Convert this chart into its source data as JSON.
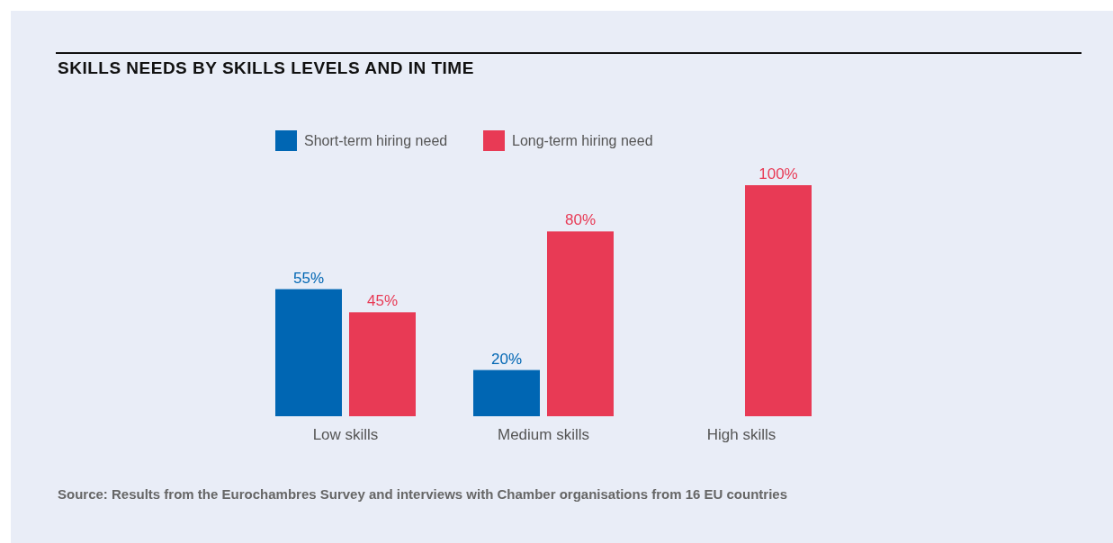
{
  "chart_data": {
    "type": "bar",
    "title": "SKILLS NEEDS BY SKILLS LEVELS AND IN TIME",
    "categories": [
      "Low skills",
      "Medium skills",
      "High skills"
    ],
    "series": [
      {
        "name": "Short-term hiring need",
        "color": "#0066b3",
        "values": [
          55,
          20,
          null
        ],
        "value_labels": [
          "55%",
          "20%",
          null
        ]
      },
      {
        "name": "Long-term hiring need",
        "color": "#e83a55",
        "values": [
          45,
          80,
          100
        ],
        "value_labels": [
          "45%",
          "80%",
          "100%"
        ]
      }
    ],
    "legend": "top",
    "annotations": [
      "Source: Results from the Eurochambres Survey and interviews with Chamber organisations from 16 EU countries"
    ]
  }
}
